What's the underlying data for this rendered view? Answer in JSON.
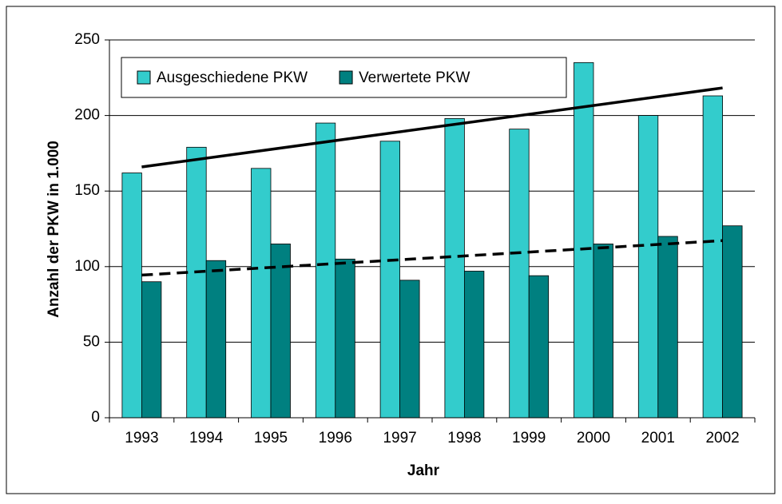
{
  "chart_data": {
    "type": "bar",
    "x_label": "Jahr",
    "y_label": "Anzahl der PKW in 1.000",
    "categories": [
      "1993",
      "1994",
      "1995",
      "1996",
      "1997",
      "1998",
      "1999",
      "2000",
      "2001",
      "2002"
    ],
    "series": [
      {
        "name": "Ausgeschiedene PKW",
        "color": "#33cccc",
        "values": [
          162,
          179,
          165,
          195,
          183,
          198,
          191,
          235,
          200,
          213
        ]
      },
      {
        "name": "Verwertete PKW",
        "color": "#008080",
        "values": [
          90,
          104,
          115,
          105,
          91,
          97,
          94,
          115,
          120,
          127
        ]
      }
    ],
    "ylim": [
      0,
      250
    ],
    "yticks": [
      0,
      50,
      100,
      150,
      200,
      250
    ],
    "grid": true,
    "trendline": true
  }
}
